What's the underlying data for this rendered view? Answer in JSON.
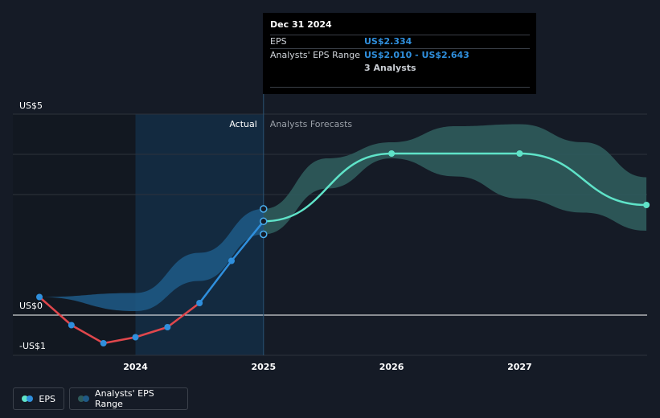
{
  "chart_data": {
    "type": "line",
    "y_tick_labels": [
      "US$5",
      "US$0",
      "-US$1"
    ],
    "x_tick_labels": [
      "2024",
      "2025",
      "2026",
      "2027"
    ],
    "ylim": [
      -1,
      5
    ],
    "region_labels": {
      "actual": "Actual",
      "forecast": "Analysts Forecasts"
    },
    "series": [
      {
        "name": "EPS",
        "actual_points": [
          {
            "x": 2023.25,
            "y": 0.45
          },
          {
            "x": 2023.5,
            "y": -0.25
          },
          {
            "x": 2023.75,
            "y": -0.7
          },
          {
            "x": 2024.0,
            "y": -0.55
          },
          {
            "x": 2024.25,
            "y": -0.3
          },
          {
            "x": 2024.5,
            "y": 0.3
          },
          {
            "x": 2024.75,
            "y": 1.35
          },
          {
            "x": 2025.0,
            "y": 2.334
          }
        ],
        "forecast_points": [
          {
            "x": 2025.0,
            "y": 2.334
          },
          {
            "x": 2026.0,
            "y": 4.02
          },
          {
            "x": 2027.0,
            "y": 4.02
          },
          {
            "x": 2027.99,
            "y": 2.74
          }
        ]
      },
      {
        "name": "Analysts' EPS Range",
        "range_at_2025": {
          "low": 2.01,
          "high": 2.643
        }
      }
    ],
    "tooltip": {
      "date": "Dec 31 2024",
      "rows": [
        {
          "label": "EPS",
          "value": "US$2.334"
        },
        {
          "label": "Analysts' EPS Range",
          "value": "US$2.010 - US$2.643"
        }
      ],
      "analysts": "3 Analysts"
    },
    "legend": [
      {
        "label": "EPS"
      },
      {
        "label": "Analysts' EPS Range"
      }
    ],
    "colors": {
      "background": "#151b26",
      "eps_negative": "#e0474c",
      "eps_actual": "#2f8fdd",
      "eps_forecast": "#5fe3c8",
      "actual_range_band": "#1f5a87",
      "forecast_range_band": "#2f5c5c",
      "actual_region": "#132a40",
      "grid": "#2d333c",
      "zero_line": "#ffffff"
    }
  }
}
